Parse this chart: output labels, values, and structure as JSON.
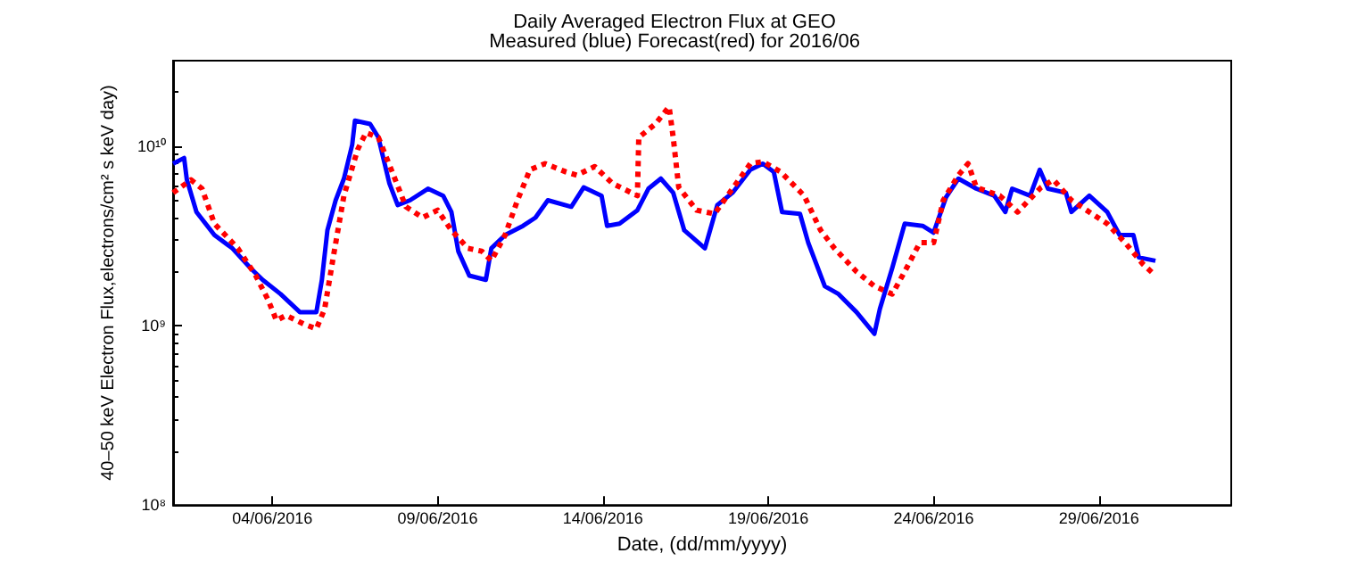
{
  "chart_data": {
    "type": "line",
    "title": "Daily Averaged Electron Flux at GEO",
    "subtitle": "Measured (blue) Forecast(red) for 2016/06",
    "xlabel": "Date, (dd/mm/yyyy)",
    "ylabel": "40–50 keV Electron Flux,electrons/cm² s keV day)",
    "log": "y",
    "grid": false,
    "marker": "none",
    "xlim": [
      "2016-06-01",
      "2016-07-03"
    ],
    "xticks": [
      {
        "value": "2016-06-04",
        "label": "04/06/2016"
      },
      {
        "value": "2016-06-09",
        "label": "09/06/2016"
      },
      {
        "value": "2016-06-14",
        "label": "14/06/2016"
      },
      {
        "value": "2016-06-19",
        "label": "19/06/2016"
      },
      {
        "value": "2016-06-24",
        "label": "24/06/2016"
      },
      {
        "value": "2016-06-29",
        "label": "29/06/2016"
      }
    ],
    "ylim": [
      100000000.0,
      30000000000.0
    ],
    "yticks": [
      {
        "value": 100000000.0,
        "label": "10⁸"
      },
      {
        "value": 1000000000.0,
        "label": "10⁹"
      },
      {
        "value": 10000000000.0,
        "label": "10¹⁰"
      }
    ],
    "series": [
      {
        "color": "#0000ff",
        "line_style": "solid",
        "x": [
          "2016-06-01T00:00",
          "2016-06-01T08:00",
          "2016-06-01T10:00",
          "2016-06-01T17:00",
          "2016-06-02T06:00",
          "2016-06-02T19:00",
          "2016-06-03T08:00",
          "2016-06-03T17:00",
          "2016-06-04T06:00",
          "2016-06-04T20:00",
          "2016-06-05T08:00",
          "2016-06-05T12:00",
          "2016-06-05T16:00",
          "2016-06-05T22:00",
          "2016-06-06T04:00",
          "2016-06-06T10:00",
          "2016-06-06T12:00",
          "2016-06-06T23:00",
          "2016-06-07T05:00",
          "2016-06-07T13:00",
          "2016-06-07T19:00",
          "2016-06-08T04:00",
          "2016-06-08T17:00",
          "2016-06-09T04:00",
          "2016-06-09T10:00",
          "2016-06-09T15:00",
          "2016-06-09T23:00",
          "2016-06-10T11:00",
          "2016-06-10T15:00",
          "2016-06-11T01:00",
          "2016-06-11T14:00",
          "2016-06-11T23:00",
          "2016-06-12T08:00",
          "2016-06-13T01:00",
          "2016-06-13T10:00",
          "2016-06-13T23:00",
          "2016-06-14T03:00",
          "2016-06-14T12:00",
          "2016-06-15T01:00",
          "2016-06-15T09:00",
          "2016-06-15T18:00",
          "2016-06-16T03:00",
          "2016-06-16T11:00",
          "2016-06-17T02:00",
          "2016-06-17T11:00",
          "2016-06-17T22:00",
          "2016-06-18T11:00",
          "2016-06-18T20:00",
          "2016-06-19T04:00",
          "2016-06-19T10:00",
          "2016-06-19T23:00",
          "2016-06-20T05:00",
          "2016-06-20T17:00",
          "2016-06-21T03:00",
          "2016-06-21T16:00",
          "2016-06-22T05:00",
          "2016-06-22T09:00",
          "2016-06-22T18:00",
          "2016-06-23T03:00",
          "2016-06-23T16:00",
          "2016-06-24T00:00",
          "2016-06-24T09:00",
          "2016-06-24T18:00",
          "2016-06-25T07:00",
          "2016-06-25T20:00",
          "2016-06-26T04:00",
          "2016-06-26T09:00",
          "2016-06-26T22:00",
          "2016-06-27T05:00",
          "2016-06-27T11:00",
          "2016-06-28T00:00",
          "2016-06-28T04:00",
          "2016-06-28T17:00",
          "2016-06-29T06:00",
          "2016-06-29T15:00",
          "2016-06-30T01:00",
          "2016-06-30T05:00",
          "2016-06-30T17:00"
        ],
        "values": [
          8000000000.0,
          8600000000.0,
          6500000000.0,
          4300000000.0,
          3200000000.0,
          2700000000.0,
          2100000000.0,
          1800000000.0,
          1500000000.0,
          1190000000.0,
          1190000000.0,
          1800000000.0,
          3400000000.0,
          5000000000.0,
          6600000000.0,
          10200000000.0,
          13900000000.0,
          13300000000.0,
          11200000000.0,
          6200000000.0,
          4700000000.0,
          5000000000.0,
          5800000000.0,
          5300000000.0,
          4300000000.0,
          2600000000.0,
          1900000000.0,
          1800000000.0,
          2700000000.0,
          3200000000.0,
          3600000000.0,
          4000000000.0,
          5000000000.0,
          4600000000.0,
          5900000000.0,
          5300000000.0,
          3600000000.0,
          3700000000.0,
          4400000000.0,
          5800000000.0,
          6600000000.0,
          5500000000.0,
          3400000000.0,
          2700000000.0,
          4700000000.0,
          5500000000.0,
          7400000000.0,
          8000000000.0,
          7200000000.0,
          4300000000.0,
          4200000000.0,
          2900000000.0,
          1660000000.0,
          1500000000.0,
          1190000000.0,
          900000000.0,
          1240000000.0,
          2100000000.0,
          3700000000.0,
          3600000000.0,
          3300000000.0,
          5200000000.0,
          6600000000.0,
          5800000000.0,
          5300000000.0,
          4300000000.0,
          5800000000.0,
          5300000000.0,
          7400000000.0,
          5800000000.0,
          5500000000.0,
          4300000000.0,
          5300000000.0,
          4300000000.0,
          3200000000.0,
          3200000000.0,
          2400000000.0,
          2300000000.0
        ]
      },
      {
        "color": "#ff0000",
        "line_style": "dotted",
        "x": [
          "2016-06-01T00:00",
          "2016-06-01T13:00",
          "2016-06-01T21:00",
          "2016-06-02T06:00",
          "2016-06-02T23:00",
          "2016-06-03T12:00",
          "2016-06-03T21:00",
          "2016-06-04T03:00",
          "2016-06-04T10:00",
          "2016-06-04T23:00",
          "2016-06-05T08:00",
          "2016-06-05T14:00",
          "2016-06-05T21:00",
          "2016-06-06T04:00",
          "2016-06-06T14:00",
          "2016-06-06T20:00",
          "2016-06-07T05:00",
          "2016-06-07T15:00",
          "2016-06-08T01:00",
          "2016-06-08T13:00",
          "2016-06-09T00:00",
          "2016-06-09T10:00",
          "2016-06-09T22:00",
          "2016-06-10T08:00",
          "2016-06-10T15:00",
          "2016-06-11T01:00",
          "2016-06-11T10:00",
          "2016-06-11T19:00",
          "2016-06-12T06:00",
          "2016-06-12T21:00",
          "2016-06-13T05:00",
          "2016-06-13T18:00",
          "2016-06-14T07:00",
          "2016-06-15T01:00",
          "2016-06-15T02:00",
          "2016-06-15T14:00",
          "2016-06-16T00:00",
          "2016-06-16T03:00",
          "2016-06-16T07:00",
          "2016-06-16T20:00",
          "2016-06-17T09:00",
          "2016-06-17T22:00",
          "2016-06-18T11:00",
          "2016-06-18T20:00",
          "2016-06-19T09:00",
          "2016-06-20T02:00",
          "2016-06-20T14:00",
          "2016-06-21T00:00",
          "2016-06-21T16:00",
          "2016-06-22T05:00",
          "2016-06-22T18:00",
          "2016-06-23T03:00",
          "2016-06-23T14:00",
          "2016-06-24T00:00",
          "2016-06-24T07:00",
          "2016-06-24T18:00",
          "2016-06-25T01:00",
          "2016-06-25T07:00",
          "2016-06-26T00:00",
          "2016-06-26T13:00",
          "2016-06-27T06:00",
          "2016-06-27T15:00",
          "2016-06-28T04:00",
          "2016-06-28T17:00",
          "2016-06-29T06:00",
          "2016-06-29T19:00",
          "2016-06-30T08:00",
          "2016-06-30T17:00"
        ],
        "values": [
          5500000000.0,
          6500000000.0,
          5800000000.0,
          3700000000.0,
          2700000000.0,
          1900000000.0,
          1390000000.0,
          1070000000.0,
          1140000000.0,
          1020000000.0,
          960000000.0,
          1240000000.0,
          2600000000.0,
          5300000000.0,
          9600000000.0,
          11900000000.0,
          11200000000.0,
          7200000000.0,
          4600000000.0,
          4000000000.0,
          4400000000.0,
          3400000000.0,
          2700000000.0,
          2600000000.0,
          2300000000.0,
          3200000000.0,
          5000000000.0,
          7400000000.0,
          8000000000.0,
          7200000000.0,
          6900000000.0,
          7700000000.0,
          6200000000.0,
          5300000000.0,
          11200000000.0,
          13300000000.0,
          16600000000.0,
          11200000000.0,
          5900000000.0,
          4400000000.0,
          4200000000.0,
          5800000000.0,
          8000000000.0,
          8200000000.0,
          7200000000.0,
          5300000000.0,
          3400000000.0,
          2700000000.0,
          2000000000.0,
          1660000000.0,
          1500000000.0,
          2000000000.0,
          2900000000.0,
          2900000000.0,
          5000000000.0,
          6900000000.0,
          8000000000.0,
          5900000000.0,
          5300000000.0,
          4300000000.0,
          5900000000.0,
          6500000000.0,
          5000000000.0,
          4300000000.0,
          3700000000.0,
          2900000000.0,
          2200000000.0,
          1900000000.0
        ]
      }
    ]
  }
}
